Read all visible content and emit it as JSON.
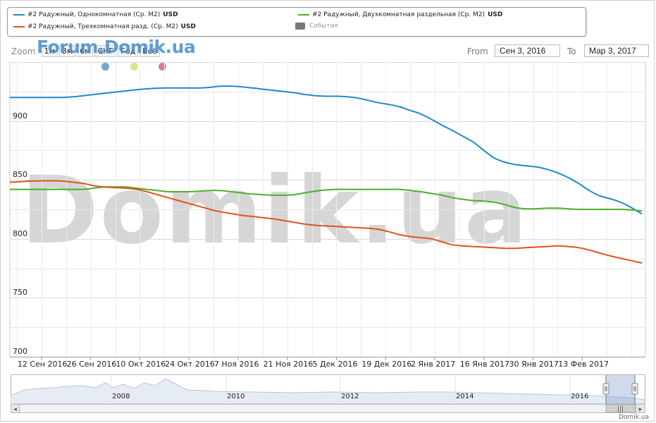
{
  "legend": {
    "items": [
      {
        "label": "#2 Радужный, Однокомнатная (Ср. М2)",
        "unit": "USD",
        "color": "#1f8ac9"
      },
      {
        "label": "#2 Радужный, Двухкомнатная раздельная (Ср. М2)",
        "unit": "USD",
        "color": "#4cae2a"
      },
      {
        "label": "#2 Радужный, Трехкомнатная разд. (Ср. М2)",
        "unit": "USD",
        "color": "#e0531c"
      }
    ],
    "events_label": "События"
  },
  "zoom": {
    "label": "Zoom",
    "buttons": [
      "1м",
      "3м",
      "6м",
      "СНГ",
      "Год",
      "Всё"
    ]
  },
  "watermark_logo": "Forum.Domik.ua",
  "watermark": "Domik.ua",
  "range": {
    "from_label": "From",
    "from_value": "Сен 3, 2016",
    "to_label": "To",
    "to_value": "Мар 3, 2017"
  },
  "flag_colors": [
    "#6aa5d6",
    "#dce388",
    "#dc7a9a"
  ],
  "chart_data": {
    "type": "line",
    "x_tick_labels": [
      "12 Сен 2016",
      "26 Сен 2016",
      "10 Окт 2016",
      "24 Окт 2016",
      "7 Ноя 2016",
      "21 Ноя 2016",
      "5 Дек 2016",
      "19 Дек 2016",
      "2 Янв 2017",
      "16 Янв 2017",
      "30 Янв 2017",
      "13 Фев 2017"
    ],
    "y_ticks": [
      700,
      750,
      800,
      850,
      900
    ],
    "ylim": [
      700,
      950
    ],
    "x": [
      "2016-09-03",
      "2016-09-06",
      "2016-09-09",
      "2016-09-12",
      "2016-09-15",
      "2016-09-18",
      "2016-09-21",
      "2016-09-24",
      "2016-09-27",
      "2016-09-30",
      "2016-10-03",
      "2016-10-06",
      "2016-10-09",
      "2016-10-12",
      "2016-10-15",
      "2016-10-18",
      "2016-10-21",
      "2016-10-24",
      "2016-10-27",
      "2016-10-30",
      "2016-11-02",
      "2016-11-05",
      "2016-11-08",
      "2016-11-11",
      "2016-11-14",
      "2016-11-17",
      "2016-11-20",
      "2016-11-23",
      "2016-11-26",
      "2016-11-29",
      "2016-12-02",
      "2016-12-05",
      "2016-12-08",
      "2016-12-11",
      "2016-12-14",
      "2016-12-17",
      "2016-12-20",
      "2016-12-23",
      "2016-12-26",
      "2016-12-29",
      "2017-01-01",
      "2017-01-04",
      "2017-01-07",
      "2017-01-10",
      "2017-01-13",
      "2017-01-16",
      "2017-01-19",
      "2017-01-22",
      "2017-01-25",
      "2017-01-28",
      "2017-01-31",
      "2017-02-03",
      "2017-02-06",
      "2017-02-09",
      "2017-02-12",
      "2017-02-15",
      "2017-02-18",
      "2017-02-21",
      "2017-02-24",
      "2017-02-27",
      "2017-03-02"
    ],
    "series": [
      {
        "name": "#2 Радужный, Однокомнатная (Ср. М2)",
        "color": "#1f8ac9",
        "values": [
          920,
          920,
          920,
          920,
          920,
          920,
          920.5,
          921.5,
          922.5,
          923.5,
          924.5,
          925.5,
          926.5,
          927.3,
          927.8,
          928,
          928,
          928,
          928,
          928.5,
          929.5,
          929.5,
          929,
          928,
          927,
          926,
          925,
          924,
          922.5,
          921.5,
          921,
          921,
          920.5,
          919.5,
          917.5,
          915.5,
          914,
          912,
          909,
          906,
          901.5,
          896.5,
          892,
          887,
          882,
          875,
          868.5,
          865,
          863,
          862,
          861,
          859,
          856,
          852,
          847,
          841,
          836.5,
          834,
          831,
          826.5,
          821
        ]
      },
      {
        "name": "#2 Радужный, Двухкомнатная раздельная (Ср. М2)",
        "color": "#4cae2a",
        "values": [
          842,
          842,
          842,
          842,
          842,
          842,
          842,
          842,
          843,
          844,
          844,
          844,
          843,
          842,
          841,
          840,
          840,
          840,
          840.5,
          841,
          841,
          840,
          839,
          838,
          837.5,
          837,
          837,
          837.5,
          839,
          840.5,
          841.5,
          842,
          842,
          842,
          842,
          842,
          842,
          842,
          841,
          840,
          838.5,
          837,
          835,
          833.5,
          832.5,
          832,
          831,
          829,
          826.5,
          825.5,
          825.5,
          826,
          826,
          825.5,
          825,
          825,
          825,
          825,
          825,
          824.5,
          823.5
        ]
      },
      {
        "name": "#2 Радужный, Трехкомнатная разд. (Ср. М2)",
        "color": "#e0531c",
        "values": [
          848,
          848.5,
          849,
          849.2,
          849.2,
          849,
          848,
          847,
          845,
          844,
          843.5,
          843,
          842,
          840,
          837.5,
          835,
          832.5,
          830,
          827.5,
          825,
          823,
          821.5,
          820,
          819,
          818,
          817,
          815.5,
          814,
          812.5,
          811.5,
          811,
          810.5,
          810,
          809.5,
          809,
          808,
          806,
          803.5,
          802,
          801,
          800,
          797.5,
          795,
          794,
          793.5,
          793,
          792.5,
          792,
          792,
          792.5,
          793,
          793.5,
          794,
          793.5,
          792.5,
          790.5,
          788,
          785.5,
          783.5,
          781.5,
          779.5
        ]
      }
    ]
  },
  "navigator": {
    "years": [
      "2008",
      "2010",
      "2012",
      "2014",
      "2016"
    ],
    "scroll_left": "◂",
    "scroll_right": "▸",
    "scroll_grip": "|||"
  },
  "credit": "Domik.ua"
}
